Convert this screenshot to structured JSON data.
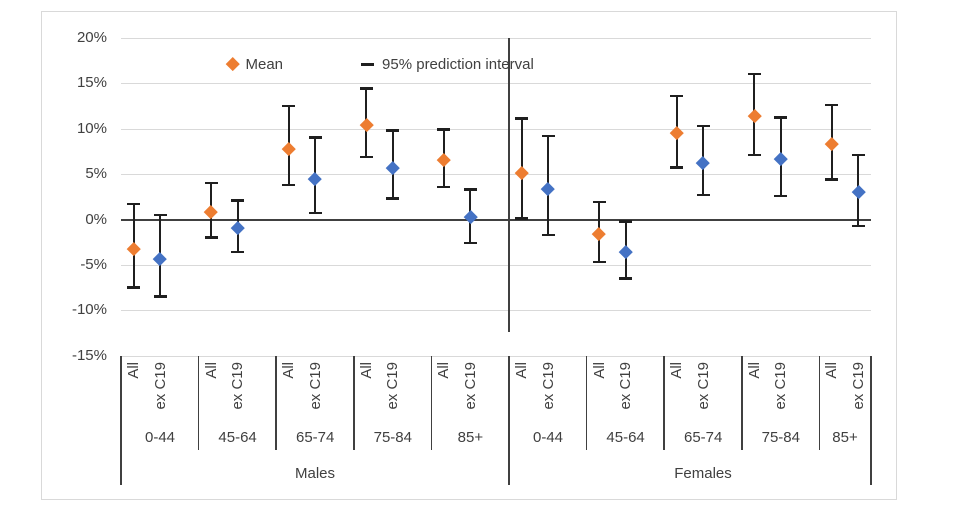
{
  "chart_data": {
    "type": "scatter",
    "subtype": "mean-with-95pct-prediction-interval-error-bars",
    "title": "",
    "ylabel": "",
    "xlabel": "",
    "grid": "horizontal",
    "legend_position": "top-inside",
    "legend": {
      "mean_label": "Mean",
      "interval_label": "95% prediction interval"
    },
    "y_axis": {
      "min": -15,
      "max": 20,
      "step": 5,
      "unit": "%",
      "ticks": [
        "20%",
        "15%",
        "10%",
        "5%",
        "0%",
        "-5%",
        "-10%",
        "-15%"
      ]
    },
    "series_labels": [
      "All",
      "ex C19"
    ],
    "colors": {
      "mean_all": "#ED7D31",
      "mean_ex_c19": "#4472C4",
      "error_bar": "#1f1f1f",
      "gridline": "#d9d9d9",
      "axis": "#404040"
    },
    "groups": [
      {
        "label": "Males",
        "ages": [
          {
            "label": "0-44",
            "points": [
              {
                "series": "All",
                "mean": -3.2,
                "lo": -7.5,
                "hi": 1.7
              },
              {
                "series": "ex C19",
                "mean": -4.3,
                "lo": -8.5,
                "hi": 0.5
              }
            ]
          },
          {
            "label": "45-64",
            "points": [
              {
                "series": "All",
                "mean": 0.8,
                "lo": -2.0,
                "hi": 4.0
              },
              {
                "series": "ex C19",
                "mean": -0.9,
                "lo": -3.6,
                "hi": 2.1
              }
            ]
          },
          {
            "label": "65-74",
            "points": [
              {
                "series": "All",
                "mean": 7.8,
                "lo": 3.8,
                "hi": 12.5
              },
              {
                "series": "ex C19",
                "mean": 4.5,
                "lo": 0.7,
                "hi": 9.0
              }
            ]
          },
          {
            "label": "75-84",
            "points": [
              {
                "series": "All",
                "mean": 10.4,
                "lo": 6.9,
                "hi": 14.4
              },
              {
                "series": "ex C19",
                "mean": 5.7,
                "lo": 2.3,
                "hi": 9.8
              }
            ]
          },
          {
            "label": "85+",
            "points": [
              {
                "series": "All",
                "mean": 6.6,
                "lo": 3.6,
                "hi": 9.9
              },
              {
                "series": "ex C19",
                "mean": 0.3,
                "lo": -2.6,
                "hi": 3.3
              }
            ]
          }
        ]
      },
      {
        "label": "Females",
        "ages": [
          {
            "label": "0-44",
            "points": [
              {
                "series": "All",
                "mean": 5.1,
                "lo": 0.1,
                "hi": 11.1
              },
              {
                "series": "ex C19",
                "mean": 3.4,
                "lo": -1.7,
                "hi": 9.2
              }
            ]
          },
          {
            "label": "45-64",
            "points": [
              {
                "series": "All",
                "mean": -1.6,
                "lo": -4.7,
                "hi": 1.9
              },
              {
                "series": "ex C19",
                "mean": -3.5,
                "lo": -6.5,
                "hi": -0.2
              }
            ]
          },
          {
            "label": "65-74",
            "points": [
              {
                "series": "All",
                "mean": 9.5,
                "lo": 5.7,
                "hi": 13.6
              },
              {
                "series": "ex C19",
                "mean": 6.2,
                "lo": 2.7,
                "hi": 10.3
              }
            ]
          },
          {
            "label": "75-84",
            "points": [
              {
                "series": "All",
                "mean": 11.4,
                "lo": 7.1,
                "hi": 16.0
              },
              {
                "series": "ex C19",
                "mean": 6.7,
                "lo": 2.6,
                "hi": 11.2
              }
            ]
          },
          {
            "label": "85+",
            "points": [
              {
                "series": "All",
                "mean": 8.3,
                "lo": 4.4,
                "hi": 12.6
              },
              {
                "series": "ex C19",
                "mean": 3.0,
                "lo": -0.7,
                "hi": 7.1
              }
            ]
          }
        ]
      }
    ]
  }
}
